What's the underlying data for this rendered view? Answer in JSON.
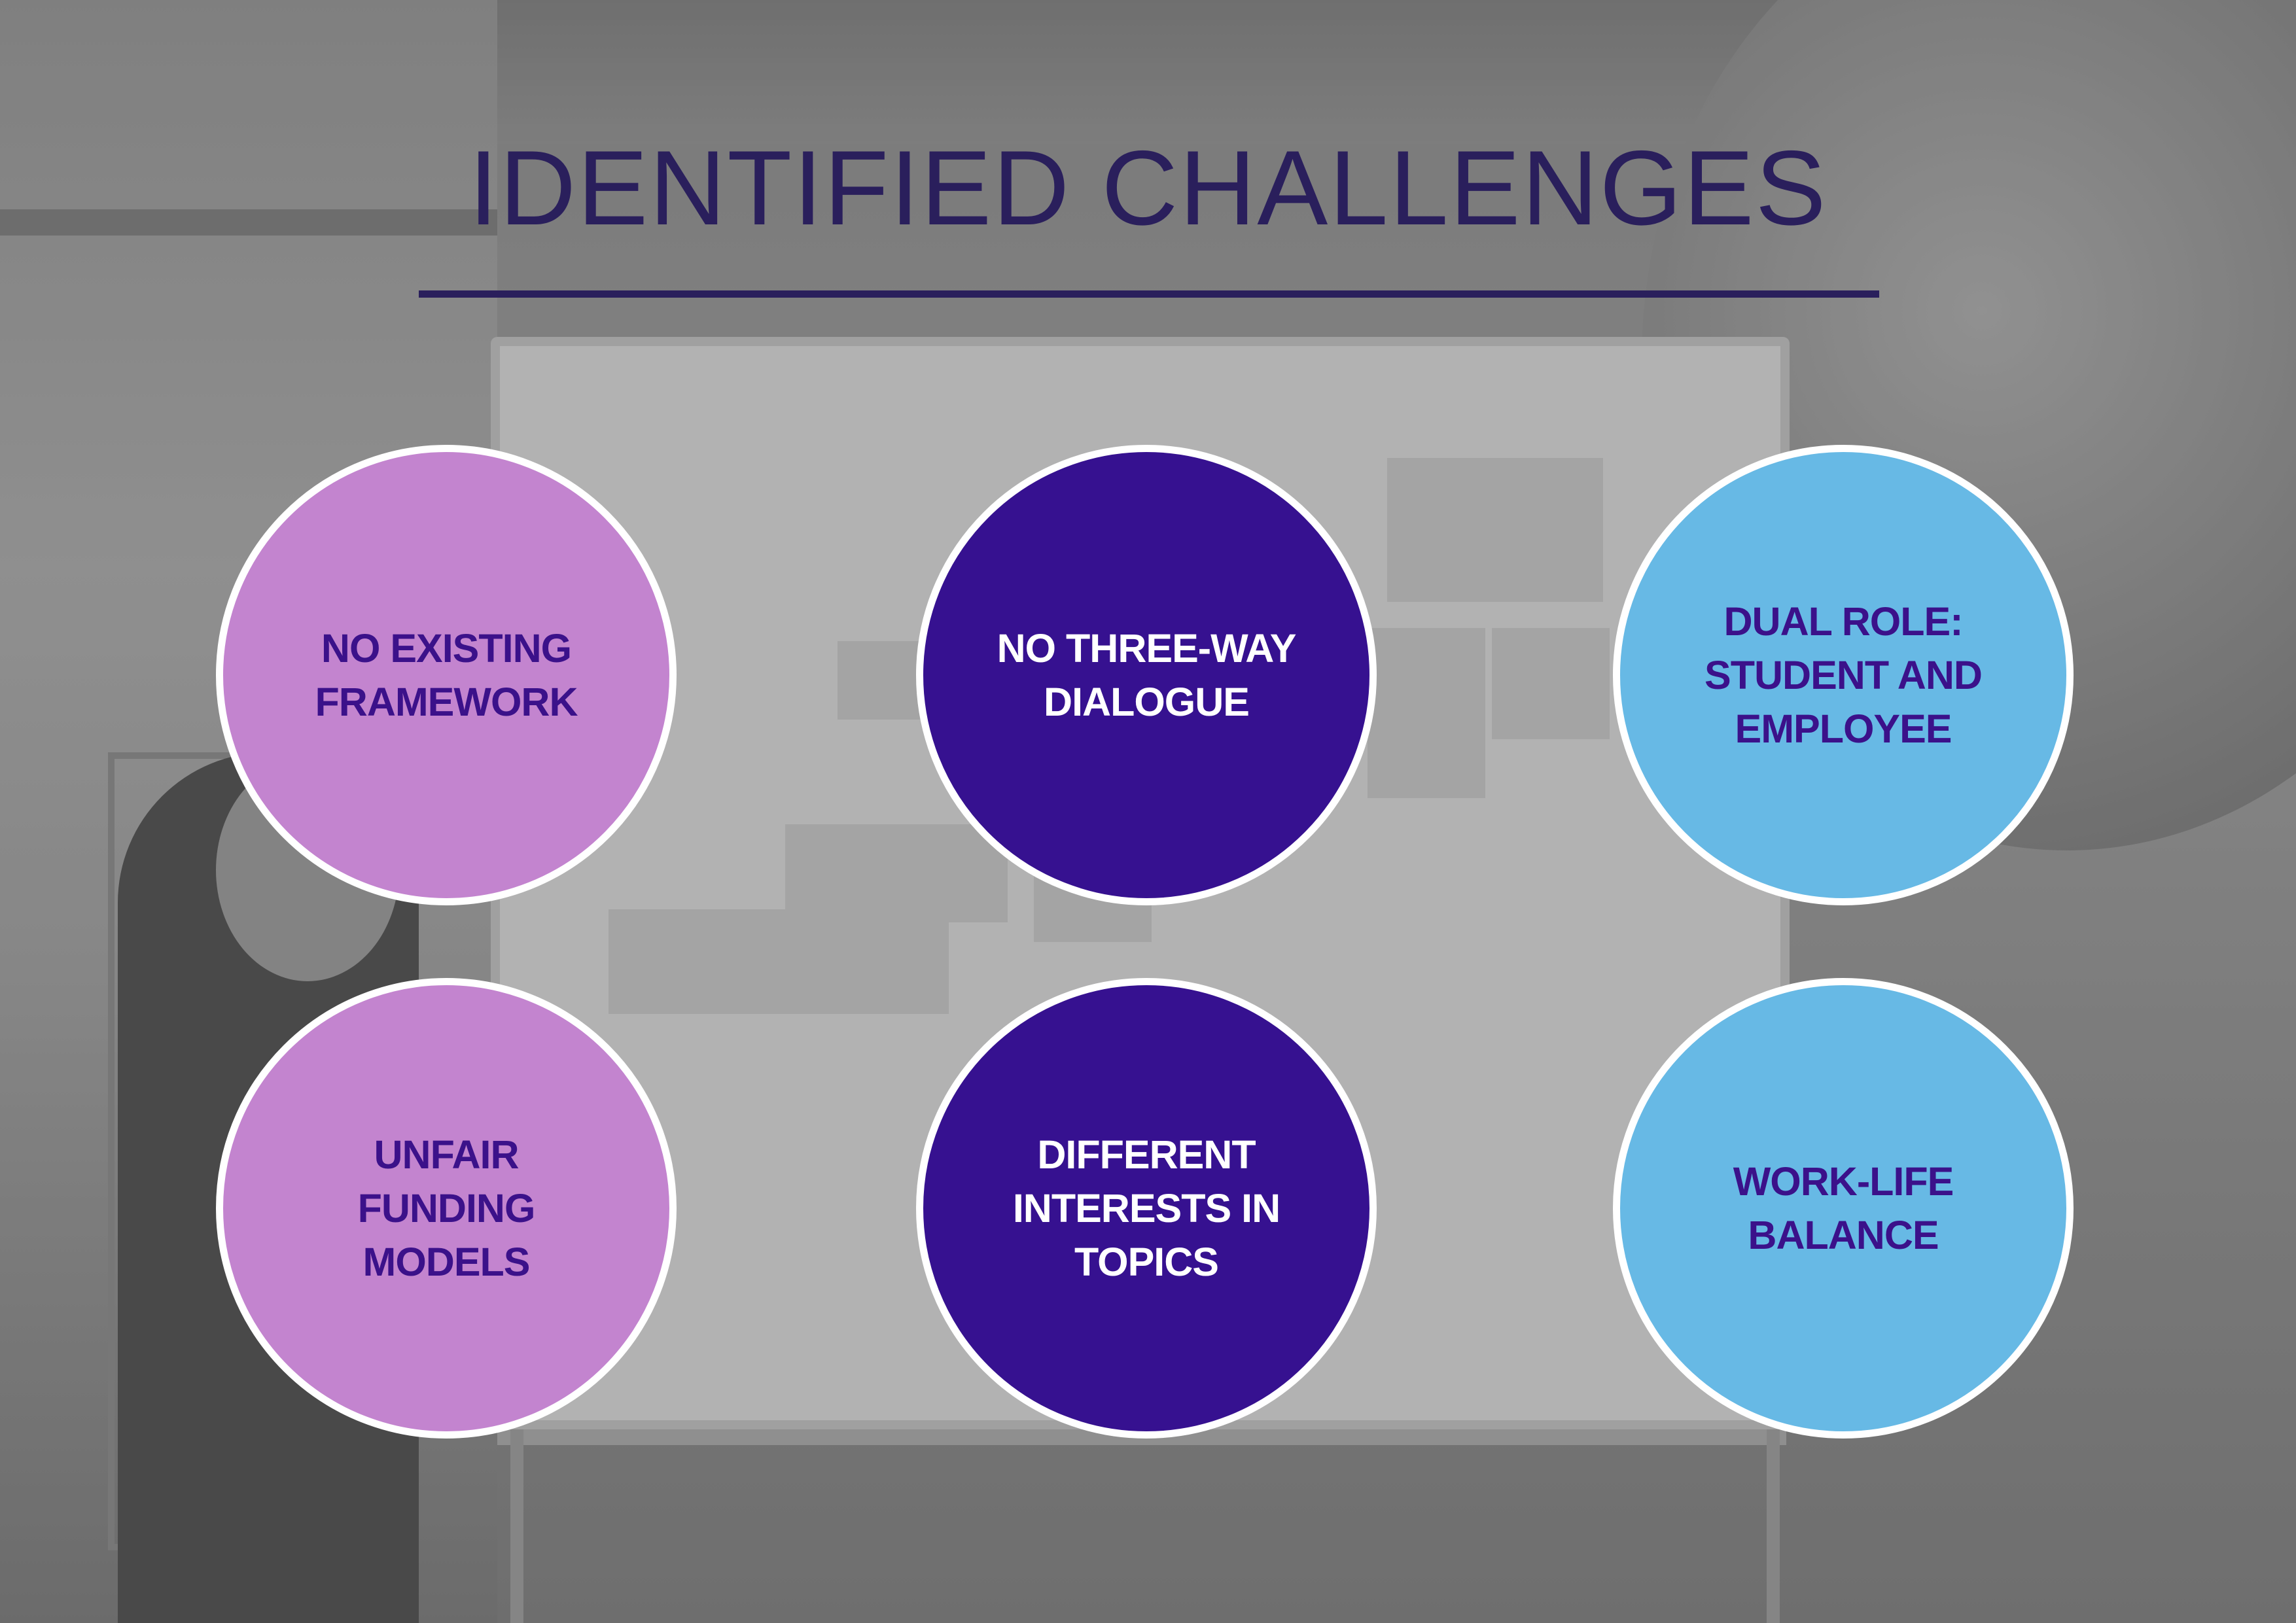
{
  "page": {
    "title": "IDENTIFIED CHALLENGES"
  },
  "challenges": [
    {
      "label": "NO EXISTING\nFRAMEWORK",
      "color": "#c384cf"
    },
    {
      "label": "NO THREE-WAY\nDIALOGUE",
      "color": "#361190"
    },
    {
      "label": "DUAL ROLE:\nSTUDENT AND\nEMPLOYEE",
      "color": "#67b9e5"
    },
    {
      "label": "UNFAIR\nFUNDING\nMODELS",
      "color": "#c384cf"
    },
    {
      "label": "DIFFERENT\nINTERESTS IN\nTOPICS",
      "color": "#361190"
    },
    {
      "label": "WORK-LIFE\nBALANCE",
      "color": "#67b9e5"
    }
  ],
  "colors": {
    "title": "#2a1f5c",
    "text_dark": "#3b118a",
    "text_light": "#ffffff",
    "circle_border": "#ffffff"
  }
}
